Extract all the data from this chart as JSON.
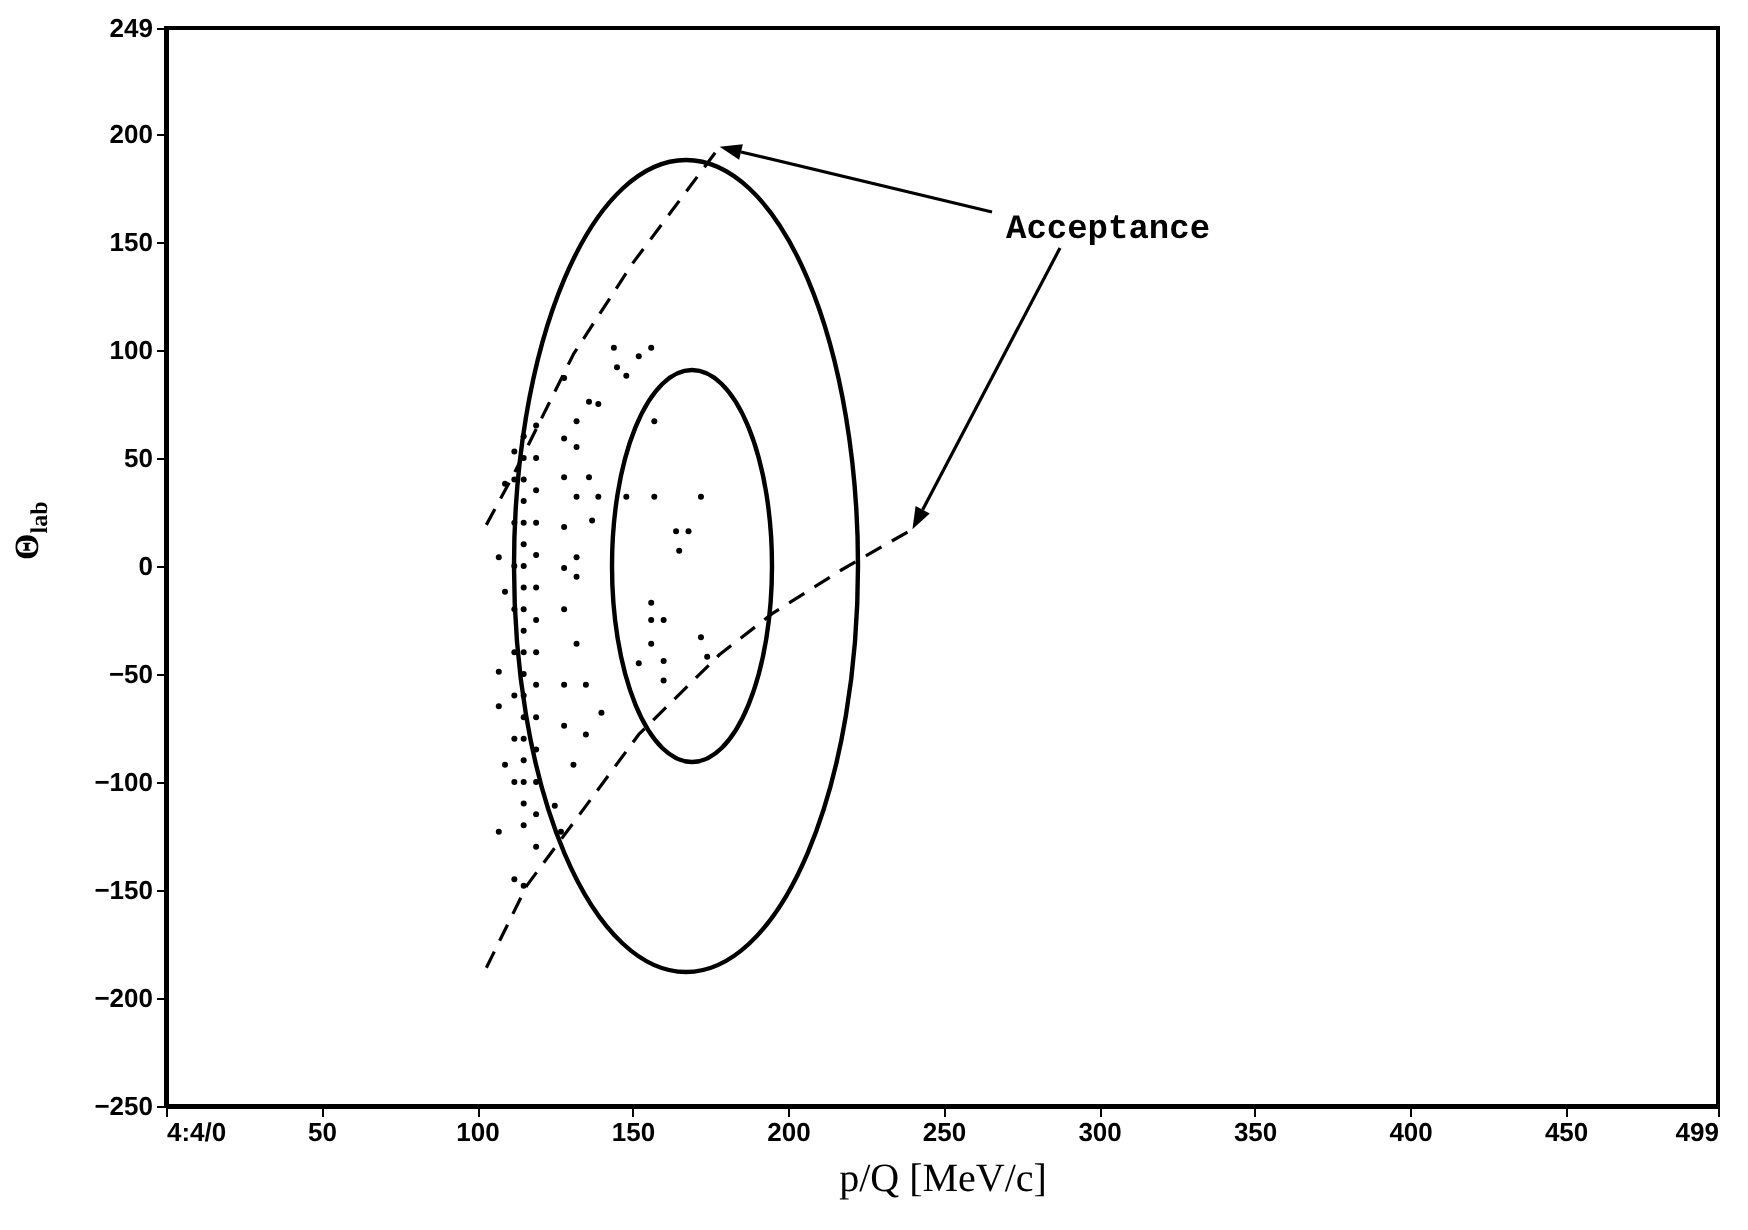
{
  "chart_data": {
    "type": "scatter",
    "xlabel": "p/Q  [MeV/c]",
    "ylabel": "Θ$_{lab}$",
    "annotations": [
      "Acceptance"
    ],
    "xlim": [
      0,
      499
    ],
    "xticks": [
      {
        "value": 0,
        "label": "4:4/0"
      },
      50,
      100,
      150,
      200,
      250,
      300,
      350,
      400,
      450,
      499
    ],
    "ylim": [
      -250,
      249
    ],
    "yticks": [
      -250,
      -200,
      -150,
      -100,
      -50,
      0,
      50,
      100,
      150,
      200,
      249
    ],
    "series": [
      {
        "color": "#000000",
        "marker": "circle",
        "x": [
          157,
          148,
          157,
          172,
          164,
          168,
          165,
          156,
          156,
          160,
          156,
          172,
          152,
          160,
          160,
          174,
          144,
          152,
          156,
          145,
          148,
          136,
          139,
          128,
          132,
          128,
          132,
          128,
          136,
          132,
          139,
          128,
          137,
          132,
          128,
          132,
          128,
          132,
          128,
          135,
          140,
          128,
          135,
          131,
          125,
          127,
          107,
          109,
          107,
          107,
          109,
          107,
          112,
          109,
          112,
          115,
          115,
          115,
          115,
          115,
          115,
          115,
          115,
          115,
          115,
          115,
          115,
          115,
          115,
          115,
          115,
          115,
          115,
          115,
          115,
          119,
          119,
          119,
          119,
          119,
          119,
          119,
          119,
          119,
          119,
          119,
          119,
          119,
          119,
          112,
          112,
          112,
          112,
          112,
          112,
          112,
          112
        ],
        "values": [
          67,
          32,
          32,
          32,
          16,
          16,
          7,
          -17,
          -25,
          -25,
          -36,
          -33,
          -45,
          -44,
          -53,
          -42,
          101,
          97,
          101,
          92,
          88,
          76,
          75,
          87,
          67,
          59,
          55,
          41,
          41,
          32,
          32,
          18,
          21,
          4,
          -1,
          -5,
          -20,
          -36,
          -55,
          -55,
          -68,
          -74,
          -78,
          -92,
          -111,
          -123,
          4,
          -12,
          -49,
          -65,
          -92,
          -123,
          -145,
          38,
          53,
          -148,
          -120,
          -110,
          -100,
          -90,
          -80,
          -70,
          -60,
          -50,
          -40,
          -30,
          -20,
          -10,
          0,
          10,
          20,
          30,
          40,
          50,
          60,
          -130,
          -115,
          -100,
          -85,
          -70,
          -55,
          -40,
          -25,
          -10,
          5,
          20,
          35,
          50,
          65,
          -100,
          -80,
          -60,
          -40,
          -20,
          0,
          20,
          40
        ]
      },
      {
        "type": "line",
        "color": "#000000",
        "line_style": "dashed",
        "x": [
          103,
          112,
          131,
          150,
          178
        ],
        "values": [
          19,
          43,
          98,
          140,
          194
        ]
      },
      {
        "type": "line",
        "color": "#000000",
        "line_style": "dashed",
        "x": [
          103,
          116,
          133,
          152,
          178,
          195,
          217,
          240
        ],
        "values": [
          -186,
          -148,
          -115,
          -78,
          -41,
          -22,
          -2,
          17
        ]
      }
    ]
  }
}
